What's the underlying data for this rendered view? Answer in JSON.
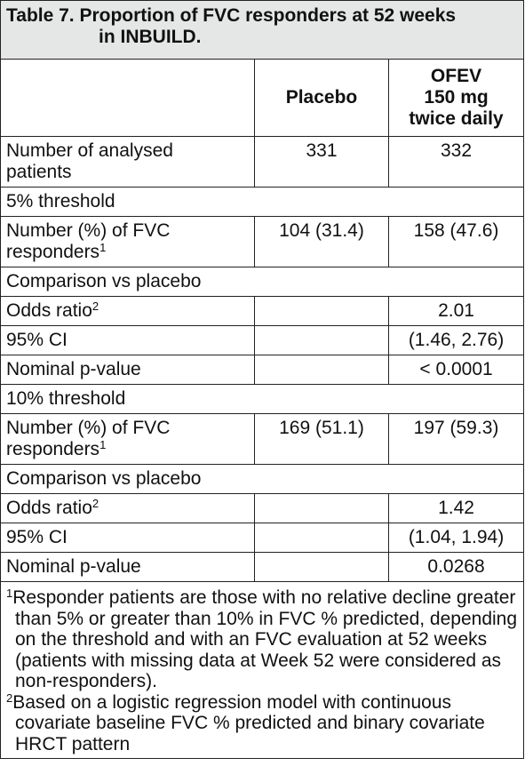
{
  "table": {
    "title_line1": "Table 7. Proportion of FVC responders at 52 weeks",
    "title_line2": "in INBUILD.",
    "columns": {
      "placebo": "Placebo",
      "ofev_line1": "OFEV",
      "ofev_line2": "150 mg",
      "ofev_line3": "twice daily"
    },
    "analysed": {
      "label_line1": "Number of analysed",
      "label_line2": "patients",
      "placebo": "331",
      "ofev": "332"
    },
    "t5": {
      "threshold": "5% threshold",
      "responders_line1": "Number (%) of FVC",
      "responders_line2": "responders",
      "responders_sup": "1",
      "placebo": "104 (31.4)",
      "ofev": "158 (47.6)",
      "comparison": "Comparison vs placebo",
      "odds_label": "Odds ratio",
      "odds_sup": "2",
      "odds": "2.01",
      "ci_label": "95% CI",
      "ci": "(1.46, 2.76)",
      "p_label": "Nominal p-value",
      "p": "< 0.0001"
    },
    "t10": {
      "threshold": "10% threshold",
      "responders_line1": "Number (%) of FVC",
      "responders_line2": "responders",
      "responders_sup": "1",
      "placebo": "169 (51.1)",
      "ofev": "197 (59.3)",
      "comparison": "Comparison vs placebo",
      "odds_label": "Odds ratio",
      "odds_sup": "2",
      "odds": "1.42",
      "ci_label": "95% CI",
      "ci": "(1.04, 1.94)",
      "p_label": "Nominal p-value",
      "p": "0.0268"
    },
    "footnotes": [
      {
        "mark": "1",
        "text": "Responder patients are those with no relative decline greater than 5% or greater than 10% in FVC % predicted, depending on the threshold and with an FVC evaluation at 52 weeks (patients with missing data at Week 52 were considered as non-responders)."
      },
      {
        "mark": "2",
        "text": "Based on a logistic regression model with continuous covariate baseline FVC % predicted and binary covariate HRCT pattern"
      }
    ]
  }
}
